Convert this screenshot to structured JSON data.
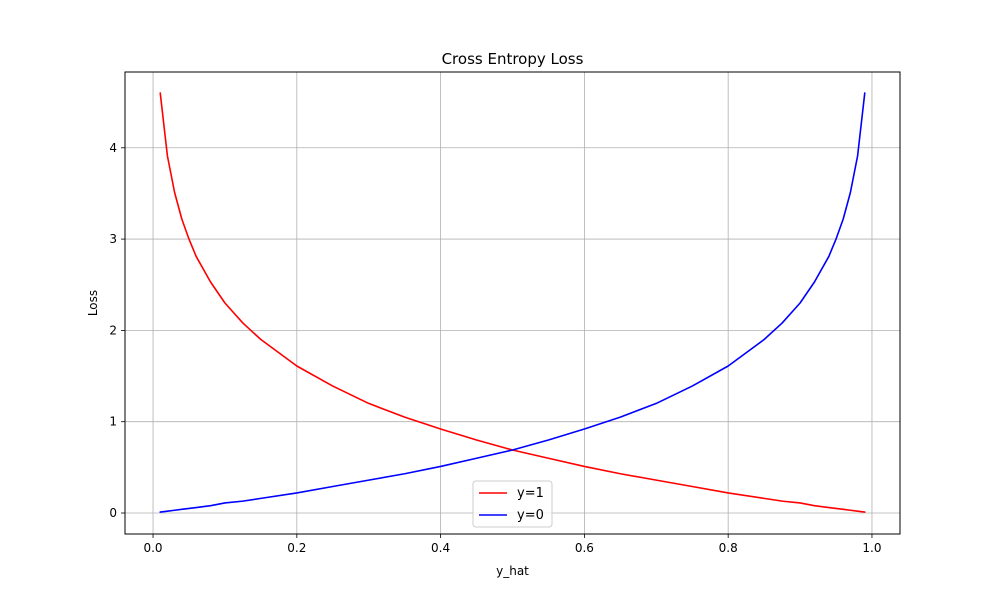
{
  "chart_data": {
    "type": "line",
    "title": "Cross Entropy Loss",
    "xlabel": "y_hat",
    "ylabel": "Loss",
    "xlim": [
      -0.039,
      1.039
    ],
    "ylim": [
      -0.23,
      4.83
    ],
    "xticks": [
      0.0,
      0.2,
      0.4,
      0.6,
      0.8,
      1.0
    ],
    "xtick_labels": [
      "0.0",
      "0.2",
      "0.4",
      "0.6",
      "0.8",
      "1.0"
    ],
    "yticks": [
      0,
      1,
      2,
      3,
      4
    ],
    "ytick_labels": [
      "0",
      "1",
      "2",
      "3",
      "4"
    ],
    "grid": true,
    "legend": "lower center",
    "x": [
      0.01,
      0.02,
      0.03,
      0.04,
      0.05,
      0.06,
      0.08,
      0.1,
      0.125,
      0.15,
      0.2,
      0.25,
      0.3,
      0.35,
      0.4,
      0.45,
      0.5,
      0.55,
      0.6,
      0.65,
      0.7,
      0.75,
      0.8,
      0.85,
      0.875,
      0.9,
      0.92,
      0.94,
      0.95,
      0.96,
      0.97,
      0.98,
      0.99
    ],
    "series": [
      {
        "name": "y=1",
        "color": "#ff0000",
        "values": [
          4.6,
          3.91,
          3.51,
          3.22,
          3.0,
          2.81,
          2.53,
          2.3,
          2.08,
          1.9,
          1.61,
          1.39,
          1.2,
          1.05,
          0.92,
          0.8,
          0.69,
          0.6,
          0.51,
          0.43,
          0.36,
          0.29,
          0.22,
          0.16,
          0.13,
          0.11,
          0.08,
          0.06,
          0.05,
          0.04,
          0.03,
          0.02,
          0.01
        ]
      },
      {
        "name": "y=0",
        "color": "#0000ff",
        "values": [
          0.01,
          0.02,
          0.03,
          0.04,
          0.05,
          0.06,
          0.08,
          0.11,
          0.13,
          0.16,
          0.22,
          0.29,
          0.36,
          0.43,
          0.51,
          0.6,
          0.69,
          0.8,
          0.92,
          1.05,
          1.2,
          1.39,
          1.61,
          1.9,
          2.08,
          2.3,
          2.53,
          2.81,
          3.0,
          3.22,
          3.51,
          3.91,
          4.6
        ]
      }
    ]
  }
}
